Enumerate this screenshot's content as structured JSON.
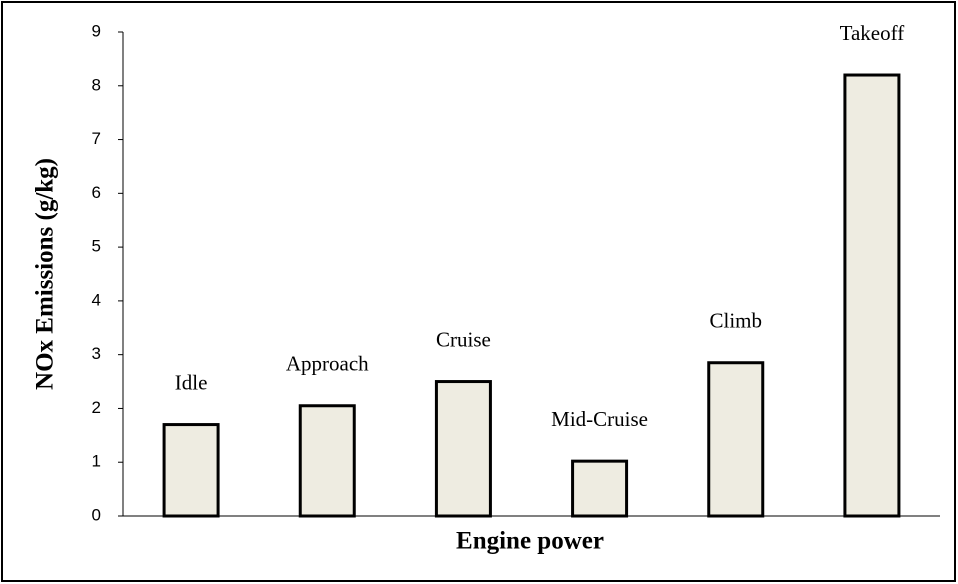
{
  "chart_data": {
    "type": "bar",
    "x_label": "Engine power",
    "y_label": "NOx Emissions (g/kg)",
    "categories": [
      "Idle",
      "Approach",
      "Cruise",
      "Mid-Cruise",
      "Climb",
      "Takeoff"
    ],
    "values": [
      1.7,
      2.05,
      2.5,
      1.02,
      2.85,
      8.2
    ],
    "color": "#eeece1",
    "ylim": [
      0,
      9
    ],
    "yticks": [
      0,
      1,
      2,
      3,
      4,
      5,
      6,
      7,
      8,
      9
    ],
    "grid": false
  }
}
